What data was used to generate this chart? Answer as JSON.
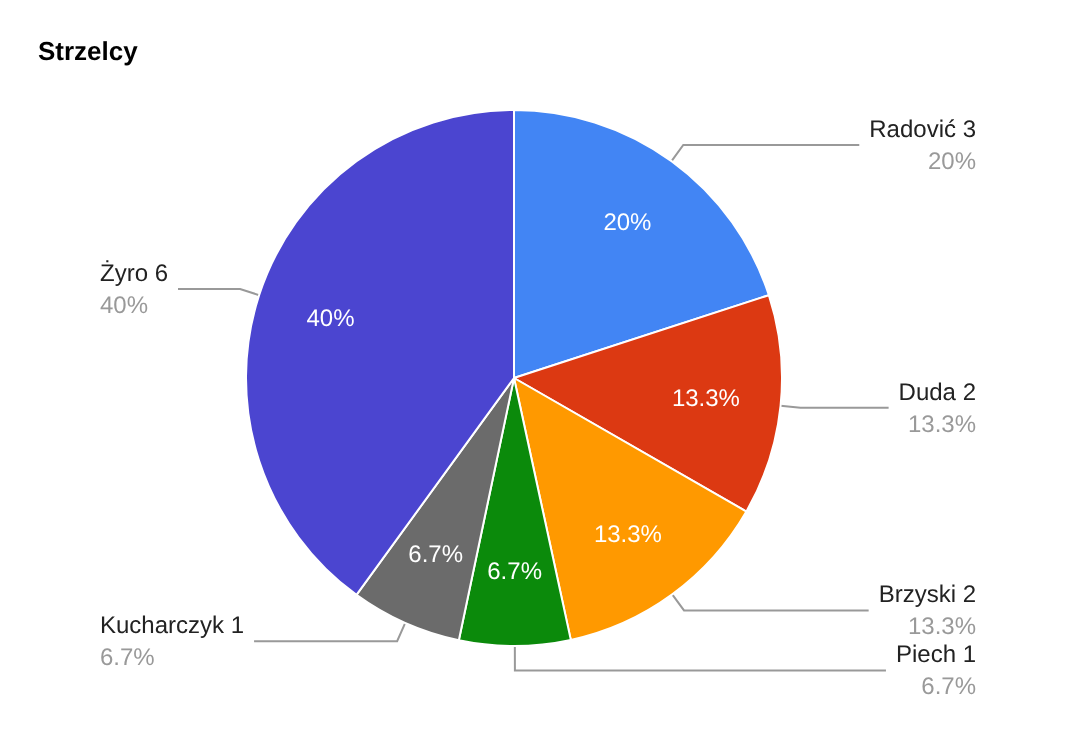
{
  "chart_data": {
    "type": "pie",
    "title": "Strzelcy",
    "categories": [
      "Radović 3",
      "Duda 2",
      "Brzyski 2",
      "Piech 1",
      "Kucharczyk 1",
      "Żyro 6"
    ],
    "values": [
      20,
      13.3,
      13.3,
      6.7,
      6.7,
      40
    ],
    "colors": [
      "#4285f4",
      "#dc3912",
      "#ff9900",
      "#0b8a0b",
      "#6b6b6b",
      "#4b45d0"
    ],
    "value_labels": [
      "20%",
      "13.3%",
      "13.3%",
      "6.7%",
      "6.7%",
      "40%"
    ],
    "legend": false
  }
}
